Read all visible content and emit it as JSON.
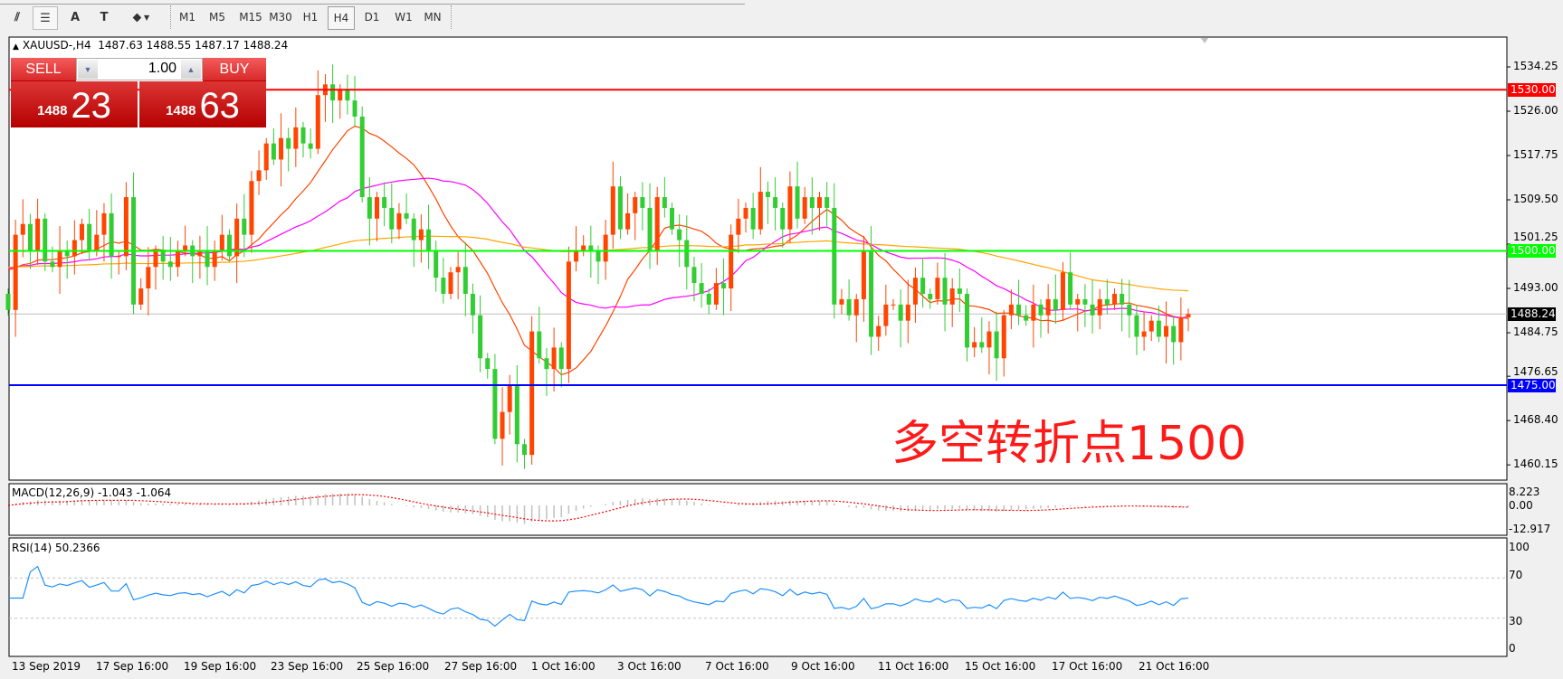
{
  "toolbar": {
    "icons": [
      "elliott-wave-icon",
      "fibonacci-icon",
      "text-icon",
      "text-label-icon",
      "arrows-icon"
    ],
    "icon_glyphs": [
      "⫽",
      "☰",
      "A",
      "T",
      "⬥"
    ],
    "timeframes": [
      "M1",
      "M5",
      "M15",
      "M30",
      "H1",
      "H4",
      "D1",
      "W1",
      "MN"
    ],
    "active_timeframe": "H4"
  },
  "header": {
    "symbol": "XAUUSD-,H4",
    "open": "1487.63",
    "high": "1488.55",
    "low": "1487.17",
    "close": "1488.24"
  },
  "trade_panel": {
    "sell_label": "SELL",
    "buy_label": "BUY",
    "lot": "1.00",
    "sell_big": "1488",
    "sell_small": "23",
    "buy_big": "1488",
    "buy_small": "63"
  },
  "price_axis": {
    "ticks": [
      "1534.25",
      "1526.00",
      "1517.75",
      "1509.50",
      "1501.25",
      "1493.00",
      "1484.75",
      "1476.65",
      "1468.40",
      "1460.15"
    ],
    "range": [
      1458.5,
      1538.5
    ]
  },
  "levels": [
    {
      "label": "1530.00",
      "value": 1530.0,
      "color": "#ff0000"
    },
    {
      "label": "1500.00",
      "value": 1500.0,
      "color": "#00ff00"
    },
    {
      "label": "1475.00",
      "value": 1475.0,
      "color": "#0000ff"
    }
  ],
  "current_price": {
    "label": "1488.24",
    "value": 1488.24
  },
  "annotation": "多空转折点1500",
  "colors": {
    "bull": "#ff4500",
    "bear": "#32cd32",
    "ma_fast": "#ff4500",
    "ma_mid": "#ff00ff",
    "ma_slow": "#ffa500",
    "macd_hist": "#c0c0c0",
    "macd_signal": "#ff0000",
    "rsi": "#1e90ff"
  },
  "macd": {
    "label": "MACD(12,26,9) -1.043 -1.064",
    "ticks": [
      "8.223",
      "0.00",
      "-12.917"
    ]
  },
  "rsi": {
    "label": "RSI(14) 50.2366",
    "ticks": [
      "100",
      "70",
      "30",
      "0"
    ]
  },
  "time_axis": [
    "13 Sep 2019",
    "17 Sep 16:00",
    "19 Sep 16:00",
    "23 Sep 16:00",
    "25 Sep 16:00",
    "27 Sep 16:00",
    "1 Oct 16:00",
    "3 Oct 16:00",
    "7 Oct 16:00",
    "9 Oct 16:00",
    "11 Oct 16:00",
    "15 Oct 16:00",
    "17 Oct 16:00",
    "21 Oct 16:00"
  ],
  "chart_data": {
    "type": "candlestick",
    "closes": [
      1489,
      1503,
      1505,
      1500,
      1506,
      1498,
      1497,
      1500,
      1499,
      1502,
      1505,
      1500,
      1503,
      1507,
      1499,
      1499,
      1510,
      1490,
      1493,
      1497,
      1500,
      1498,
      1497,
      1500,
      1501,
      1499,
      1500,
      1497,
      1500,
      1503,
      1499,
      1506,
      1503,
      1513,
      1515,
      1520,
      1517,
      1521,
      1519,
      1523,
      1520,
      1519,
      1529,
      1531,
      1528,
      1530,
      1528,
      1525,
      1510,
      1506,
      1510,
      1508,
      1504,
      1507,
      1506,
      1502,
      1504,
      1500,
      1495,
      1492,
      1496,
      1497,
      1492,
      1488,
      1480,
      1478,
      1465,
      1470,
      1475,
      1464,
      1462,
      1485,
      1480,
      1478,
      1482,
      1478,
      1498,
      1500,
      1501,
      1500,
      1498,
      1503,
      1512,
      1504,
      1507,
      1510,
      1508,
      1500,
      1510,
      1508,
      1504,
      1502,
      1497,
      1494,
      1492,
      1490,
      1494,
      1493,
      1503,
      1506,
      1508,
      1504,
      1511,
      1510,
      1508,
      1504,
      1512,
      1506,
      1510,
      1508,
      1510,
      1508,
      1490,
      1491,
      1488,
      1491,
      1500,
      1484,
      1486,
      1490,
      1490,
      1487,
      1490,
      1495,
      1492,
      1491,
      1495,
      1490,
      1493,
      1492,
      1482,
      1483,
      1482,
      1485,
      1480,
      1488,
      1490,
      1488,
      1487,
      1490,
      1488,
      1491,
      1489,
      1496,
      1490,
      1491,
      1490,
      1488,
      1491,
      1490,
      1492,
      1490,
      1488,
      1484,
      1485,
      1487,
      1484,
      1486,
      1483,
      1487.63,
      1488.24
    ]
  }
}
